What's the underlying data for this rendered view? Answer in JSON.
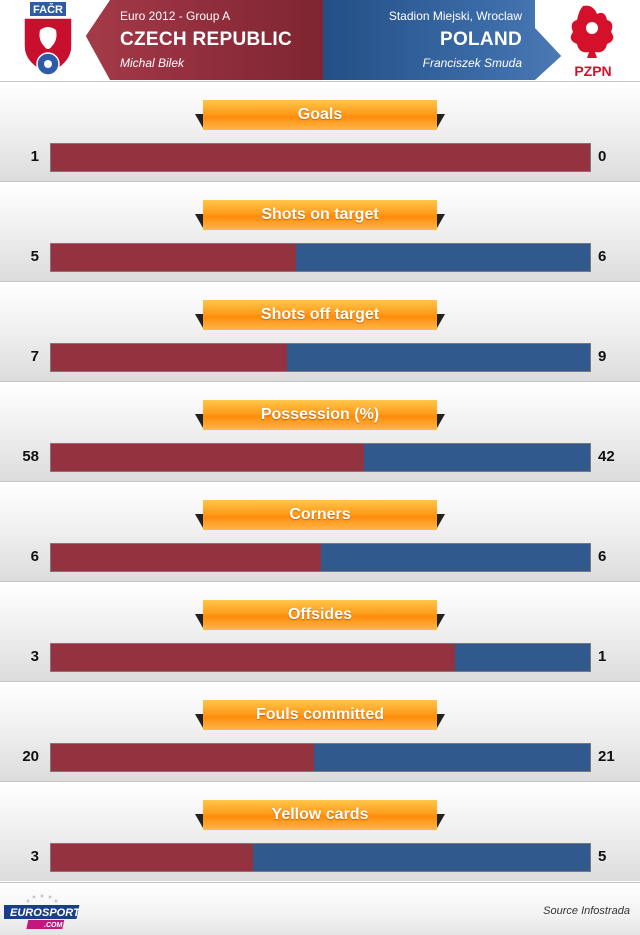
{
  "header": {
    "competition": "Euro 2012 - Group A",
    "venue": "Stadion Miejski, Wroclaw",
    "team_a": "CZECH REPUBLIC",
    "team_b": "POLAND",
    "coach_a": "Michal Bilek",
    "coach_b": "Franciszek Smuda",
    "logo_a_text": "FAČR",
    "logo_b_text": "PZPN",
    "color_a": "#953240",
    "color_b": "#30598e",
    "label_color": "#ff9c1c"
  },
  "chart_data": {
    "type": "bar",
    "orientation": "horizontal-stacked",
    "series": [
      {
        "name": "CZECH REPUBLIC"
      },
      {
        "name": "POLAND"
      }
    ],
    "categories": [
      "Goals",
      "Shots on target",
      "Shots off target",
      "Possession (%)",
      "Corners",
      "Offsides",
      "Fouls committed",
      "Yellow cards"
    ],
    "stats": [
      {
        "label": "Goals",
        "a": 1,
        "b": 0
      },
      {
        "label": "Shots on target",
        "a": 5,
        "b": 6
      },
      {
        "label": "Shots off target",
        "a": 7,
        "b": 9
      },
      {
        "label": "Possession (%)",
        "a": 58,
        "b": 42
      },
      {
        "label": "Corners",
        "a": 6,
        "b": 6
      },
      {
        "label": "Offsides",
        "a": 3,
        "b": 1
      },
      {
        "label": "Fouls committed",
        "a": 20,
        "b": 21
      },
      {
        "label": "Yellow cards",
        "a": 3,
        "b": 5
      }
    ]
  },
  "footer": {
    "source": "Source Infostrada",
    "brand_a": "EURO",
    "brand_b": "SPORT",
    "brand_sub": ".COM"
  }
}
